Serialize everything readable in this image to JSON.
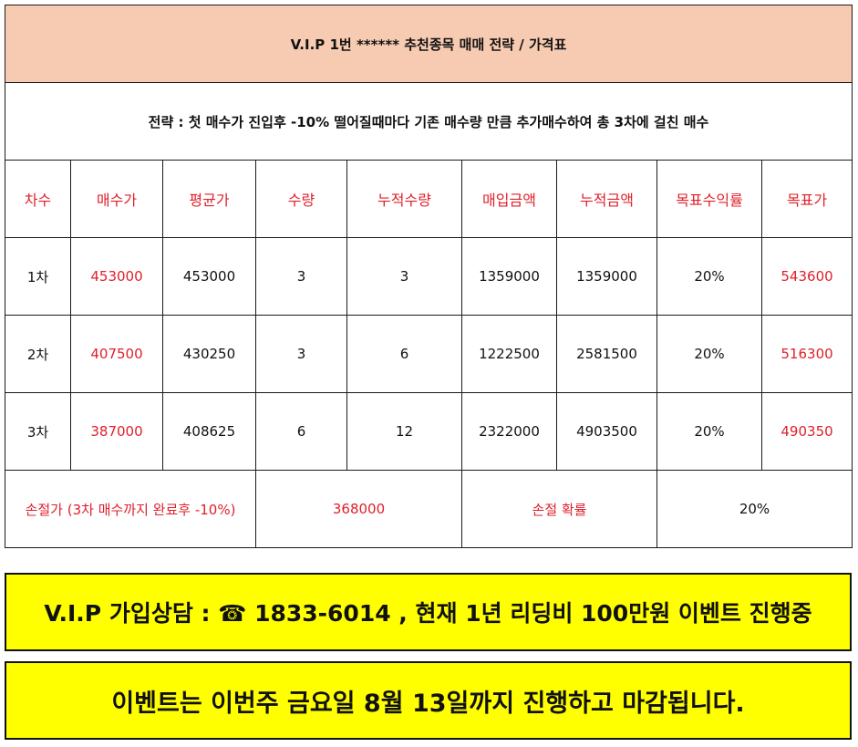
{
  "title": "V.I.P 1번 ****** 추천종목  매매 전략 / 가격표",
  "strategy": "전략 : 첫 매수가 진입후 -10% 떨어질때마다 기존 매수량 만큼 추가매수하여 총 3차에 걸친 매수",
  "headers": [
    "차수",
    "매수가",
    "평균가",
    "수량",
    "누적수량",
    "매입금액",
    "누적금액",
    "목표수익률",
    "목표가"
  ],
  "rows": [
    [
      "1차",
      "453000",
      "453000",
      "3",
      "3",
      "1359000",
      "1359000",
      "20%",
      "543600"
    ],
    [
      "2차",
      "407500",
      "430250",
      "3",
      "6",
      "1222500",
      "2581500",
      "20%",
      "516300"
    ],
    [
      "3차",
      "387000",
      "408625",
      "6",
      "12",
      "2322000",
      "4903500",
      "20%",
      "490350"
    ]
  ],
  "stop_loss": {
    "label": "손절가 (3차 매수까지 완료후 -10%)",
    "price": "368000",
    "prob_label": "손절 확률",
    "prob_value": "20%"
  },
  "banner1": "V.I.P 가입상담  : ☎ 1833-6014 , 현재 1년 리딩비 100만원 이벤트 진행중",
  "banner2": "이벤트는 이번주 금요일 8월 13일까지 진행하고 마감됩니다.",
  "colors": {
    "title_bg": "#f7cbb1",
    "accent_red": "#e0202a",
    "banner_bg": "#ffff00"
  }
}
